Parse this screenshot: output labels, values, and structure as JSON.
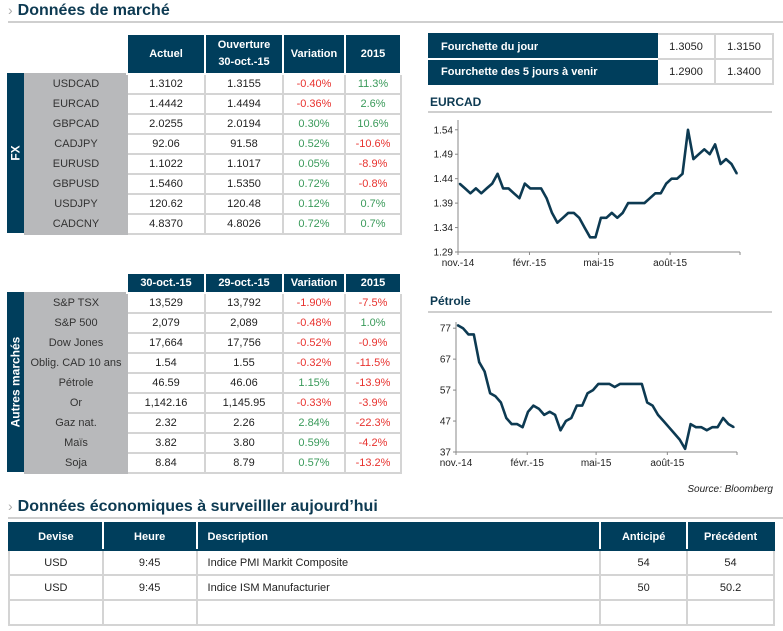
{
  "market": {
    "title": "Données de marché",
    "fx": {
      "side_label": "FX",
      "headers": [
        "Actuel",
        "Ouverture",
        "30-oct.-15",
        "Variation",
        "2015"
      ],
      "rows": [
        {
          "name": "USDCAD",
          "current": "1.3102",
          "open": "1.3155",
          "change": "-0.40%",
          "ytd": "11.3%"
        },
        {
          "name": "EURCAD",
          "current": "1.4442",
          "open": "1.4494",
          "change": "-0.36%",
          "ytd": "2.6%"
        },
        {
          "name": "GBPCAD",
          "current": "2.0255",
          "open": "2.0194",
          "change": "0.30%",
          "ytd": "10.6%"
        },
        {
          "name": "CADJPY",
          "current": "92.06",
          "open": "91.58",
          "change": "0.52%",
          "ytd": "-10.6%"
        },
        {
          "name": "EURUSD",
          "current": "1.1022",
          "open": "1.1017",
          "change": "0.05%",
          "ytd": "-8.9%"
        },
        {
          "name": "GBPUSD",
          "current": "1.5460",
          "open": "1.5350",
          "change": "0.72%",
          "ytd": "-0.8%"
        },
        {
          "name": "USDJPY",
          "current": "120.62",
          "open": "120.48",
          "change": "0.12%",
          "ytd": "0.7%"
        },
        {
          "name": "CADCNY",
          "current": "4.8370",
          "open": "4.8026",
          "change": "0.72%",
          "ytd": "0.7%"
        }
      ]
    },
    "other": {
      "side_label": "Autres marchés",
      "headers": [
        "30-oct.-15",
        "29-oct.-15",
        "Variation",
        "2015"
      ],
      "rows": [
        {
          "name": "S&P TSX",
          "current": "13,529",
          "prev": "13,792",
          "change": "-1.90%",
          "ytd": "-7.5%"
        },
        {
          "name": "S&P 500",
          "current": "2,079",
          "prev": "2,089",
          "change": "-0.48%",
          "ytd": "1.0%"
        },
        {
          "name": "Dow Jones",
          "current": "17,664",
          "prev": "17,756",
          "change": "-0.52%",
          "ytd": "-0.9%"
        },
        {
          "name": "Oblig. CAD 10 ans",
          "current": "1.54",
          "prev": "1.55",
          "change": "-0.32%",
          "ytd": "-11.5%"
        },
        {
          "name": "Pétrole",
          "current": "46.59",
          "prev": "46.06",
          "change": "1.15%",
          "ytd": "-13.9%"
        },
        {
          "name": "Or",
          "current": "1,142.16",
          "prev": "1,145.95",
          "change": "-0.33%",
          "ytd": "-3.9%"
        },
        {
          "name": "Gaz nat.",
          "current": "2.32",
          "prev": "2.26",
          "change": "2.84%",
          "ytd": "-22.3%"
        },
        {
          "name": "Maïs",
          "current": "3.82",
          "prev": "3.80",
          "change": "0.59%",
          "ytd": "-4.2%"
        },
        {
          "name": "Soja",
          "current": "8.84",
          "prev": "8.79",
          "change": "0.57%",
          "ytd": "-13.2%"
        }
      ]
    },
    "range": {
      "rows": [
        {
          "label": "Fourchette du  jour",
          "low": "1.3050",
          "high": "1.3150"
        },
        {
          "label": "Fourchette des 5 jours à venir",
          "low": "1.2900",
          "high": "1.3400"
        }
      ]
    },
    "source": "Source: Bloomberg"
  },
  "colors": {
    "header": "#003e5c",
    "negative": "#e8322e",
    "positive": "#3a9a5a",
    "line": "#0d3a52"
  },
  "chart_data": [
    {
      "type": "line",
      "title": "EURCAD",
      "x_ticks": [
        "nov.-14",
        "févr.-15",
        "mai-15",
        "août-15"
      ],
      "x_tick_dates": [
        "2014-11-01",
        "2015-02-01",
        "2015-05-01",
        "2015-08-01"
      ],
      "xlim": [
        "2014-11-01",
        "2015-10-30"
      ],
      "y_ticks": [
        "1.29",
        "1.34",
        "1.39",
        "1.44",
        "1.49",
        "1.54"
      ],
      "ylim": [
        1.29,
        1.56
      ],
      "grid": false,
      "x": [
        "2014-11-03",
        "2014-11-10",
        "2014-11-17",
        "2014-11-24",
        "2014-12-01",
        "2014-12-08",
        "2014-12-15",
        "2014-12-22",
        "2014-12-29",
        "2015-01-05",
        "2015-01-12",
        "2015-01-19",
        "2015-01-26",
        "2015-02-02",
        "2015-02-09",
        "2015-02-16",
        "2015-02-23",
        "2015-03-02",
        "2015-03-09",
        "2015-03-16",
        "2015-03-23",
        "2015-03-30",
        "2015-04-06",
        "2015-04-13",
        "2015-04-20",
        "2015-04-27",
        "2015-05-04",
        "2015-05-11",
        "2015-05-18",
        "2015-05-25",
        "2015-06-01",
        "2015-06-08",
        "2015-06-15",
        "2015-06-22",
        "2015-06-29",
        "2015-07-06",
        "2015-07-13",
        "2015-07-20",
        "2015-07-27",
        "2015-08-03",
        "2015-08-10",
        "2015-08-17",
        "2015-08-24",
        "2015-08-31",
        "2015-09-07",
        "2015-09-14",
        "2015-09-21",
        "2015-09-28",
        "2015-10-05",
        "2015-10-12",
        "2015-10-19",
        "2015-10-26"
      ],
      "values": [
        1.43,
        1.42,
        1.41,
        1.42,
        1.41,
        1.42,
        1.43,
        1.45,
        1.42,
        1.42,
        1.41,
        1.4,
        1.43,
        1.42,
        1.42,
        1.42,
        1.4,
        1.37,
        1.35,
        1.36,
        1.37,
        1.37,
        1.36,
        1.34,
        1.32,
        1.32,
        1.36,
        1.36,
        1.37,
        1.36,
        1.37,
        1.39,
        1.39,
        1.39,
        1.39,
        1.4,
        1.41,
        1.41,
        1.43,
        1.44,
        1.44,
        1.45,
        1.54,
        1.48,
        1.49,
        1.5,
        1.49,
        1.51,
        1.47,
        1.48,
        1.47,
        1.45
      ]
    },
    {
      "type": "line",
      "title": "Pétrole",
      "x_ticks": [
        "nov.-14",
        "févr.-15",
        "mai-15",
        "août-15"
      ],
      "x_tick_dates": [
        "2014-11-01",
        "2015-02-01",
        "2015-05-01",
        "2015-08-01"
      ],
      "xlim": [
        "2014-11-01",
        "2015-10-30"
      ],
      "y_ticks": [
        "37",
        "47",
        "57",
        "67",
        "77"
      ],
      "ylim": [
        37,
        79
      ],
      "grid": false,
      "x": [
        "2014-11-03",
        "2014-11-10",
        "2014-11-17",
        "2014-11-24",
        "2014-12-01",
        "2014-12-08",
        "2014-12-15",
        "2014-12-22",
        "2014-12-29",
        "2015-01-05",
        "2015-01-12",
        "2015-01-19",
        "2015-01-26",
        "2015-02-02",
        "2015-02-09",
        "2015-02-16",
        "2015-02-23",
        "2015-03-02",
        "2015-03-09",
        "2015-03-16",
        "2015-03-23",
        "2015-03-30",
        "2015-04-06",
        "2015-04-13",
        "2015-04-20",
        "2015-04-27",
        "2015-05-04",
        "2015-05-11",
        "2015-05-18",
        "2015-05-25",
        "2015-06-01",
        "2015-06-08",
        "2015-06-15",
        "2015-06-22",
        "2015-06-29",
        "2015-07-06",
        "2015-07-13",
        "2015-07-20",
        "2015-07-27",
        "2015-08-03",
        "2015-08-10",
        "2015-08-17",
        "2015-08-24",
        "2015-08-31",
        "2015-09-07",
        "2015-09-14",
        "2015-09-21",
        "2015-09-28",
        "2015-10-05",
        "2015-10-12",
        "2015-10-19",
        "2015-10-26"
      ],
      "values": [
        78,
        77,
        75,
        75,
        66,
        63,
        56,
        55,
        53,
        48,
        46,
        46,
        45,
        50,
        52,
        51,
        49,
        50,
        49,
        44,
        47,
        48,
        52,
        52,
        56,
        57,
        59,
        59,
        59,
        58,
        59,
        59,
        59,
        59,
        59,
        53,
        52,
        49,
        47,
        45,
        43,
        41,
        38,
        46,
        45,
        45,
        44,
        45,
        45,
        48,
        46,
        45
      ]
    }
  ],
  "economic": {
    "title": "Données économiques à surveilller aujourd’hui",
    "headers": [
      "Devise",
      "Heure",
      "Description",
      "Anticipé",
      "Précédent"
    ],
    "rows": [
      {
        "currency": "USD",
        "time": "9:45",
        "description": "Indice PMI Markit Composite",
        "expected": "54",
        "previous": "54"
      },
      {
        "currency": "USD",
        "time": "9:45",
        "description": "Indice ISM Manufacturier",
        "expected": "50",
        "previous": "50.2"
      },
      {
        "currency": "",
        "time": "",
        "description": "",
        "expected": "",
        "previous": ""
      }
    ]
  }
}
